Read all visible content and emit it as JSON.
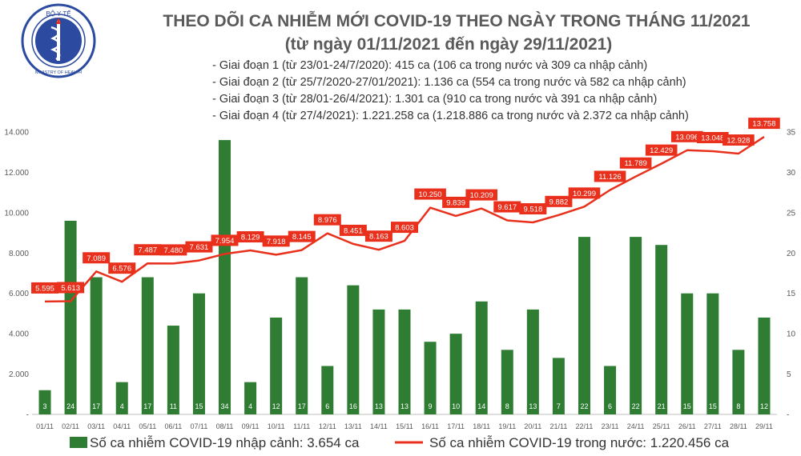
{
  "header": {
    "logo_top_text": "BỘ Y TẾ",
    "logo_bottom_text": "MINISTRY OF HEALTH",
    "title_line1": "THEO DÕI CA NHIỄM MỚI COVID-19 THEO NGÀY TRONG THÁNG 11/2021",
    "title_line2": "(từ ngày 01/11/2021 đến ngày 29/11/2021)",
    "notes": [
      "- Giai đoạn 1 (từ 23/01-24/7/2020): 415 ca (106 ca trong nước và 309 ca nhập cảnh)",
      "- Giai đoạn 2 (từ 25/7/2020-27/01/2021): 1.136 ca (554 ca trong nước và 582 ca nhập cảnh)",
      "- Giai đoạn 3 (từ 28/01-26/4/2021): 1.301 ca (910 ca trong nước và 391 ca nhập cảnh)",
      "- Giai đoạn 4 (từ 27/4/2021): 1.221.258 ca (1.218.886 ca trong nước và 2.372 ca nhập cảnh)"
    ]
  },
  "legend": {
    "bars_label": "Số ca nhiễm COVID-19 nhập cảnh: 3.654 ca",
    "line_label": "Số ca nhiễm COVID-19 trong nước: 1.220.456 ca"
  },
  "colors": {
    "bar": "#2e7d32",
    "line": "#e8301c",
    "title": "#5a5a5a"
  },
  "chart_data": {
    "type": "bar+line",
    "categories": [
      "01/11",
      "02/11",
      "03/11",
      "04/11",
      "05/11",
      "06/11",
      "07/11",
      "08/11",
      "09/11",
      "10/11",
      "11/11",
      "12/11",
      "13/11",
      "14/11",
      "15/11",
      "16/11",
      "17/11",
      "18/11",
      "19/11",
      "20/11",
      "21/11",
      "22/11",
      "23/11",
      "24/11",
      "25/11",
      "26/11",
      "27/11",
      "28/11",
      "29/11"
    ],
    "left_axis": {
      "min": 0,
      "max": 14000,
      "ticks": [
        "-",
        "2.000",
        "4.000",
        "6.000",
        "8.000",
        "10.000",
        "12.000",
        "14.000"
      ]
    },
    "right_axis": {
      "min": 0,
      "max": 35,
      "ticks": [
        "-",
        "5",
        "10",
        "15",
        "20",
        "25",
        "30",
        "35"
      ]
    },
    "series": [
      {
        "name": "Số ca nhiễm COVID-19 nhập cảnh",
        "type": "bar",
        "axis": "right",
        "values": [
          3,
          24,
          17,
          4,
          17,
          11,
          15,
          34,
          4,
          12,
          17,
          6,
          16,
          13,
          13,
          9,
          10,
          14,
          8,
          13,
          7,
          22,
          6,
          22,
          21,
          15,
          15,
          8,
          12
        ],
        "labels": [
          "3",
          "24",
          "17",
          "4",
          "17",
          "11",
          "15",
          "34",
          "4",
          "12",
          "17",
          "6",
          "16",
          "13",
          "13",
          "9",
          "10",
          "14",
          "8",
          "13",
          "7",
          "22",
          "6",
          "22",
          "21",
          "15",
          "15",
          "8",
          "12"
        ]
      },
      {
        "name": "Số ca nhiễm COVID-19 trong nước",
        "type": "line",
        "axis": "left",
        "values": [
          5595,
          5613,
          7089,
          6576,
          7487,
          7480,
          7631,
          7954,
          8129,
          7918,
          8145,
          8976,
          8451,
          8163,
          8603,
          10250,
          9839,
          10209,
          9617,
          9518,
          9882,
          10299,
          11126,
          11789,
          12429,
          13096,
          13048,
          12928,
          13758
        ],
        "labels": [
          "5.595",
          "5.613",
          "7.089",
          "6.576",
          "7.487",
          "7.480",
          "7.631",
          "7.954",
          "8.129",
          "7.918",
          "8.145",
          "8.976",
          "8.451",
          "8.163",
          "8.603",
          "10.250",
          "9.839",
          "10.209",
          "9.617",
          "9.518",
          "9.882",
          "10.299",
          "11.126",
          "11.789",
          "12.429",
          "13.096",
          "13.048",
          "12.928",
          "13.758"
        ]
      }
    ]
  }
}
